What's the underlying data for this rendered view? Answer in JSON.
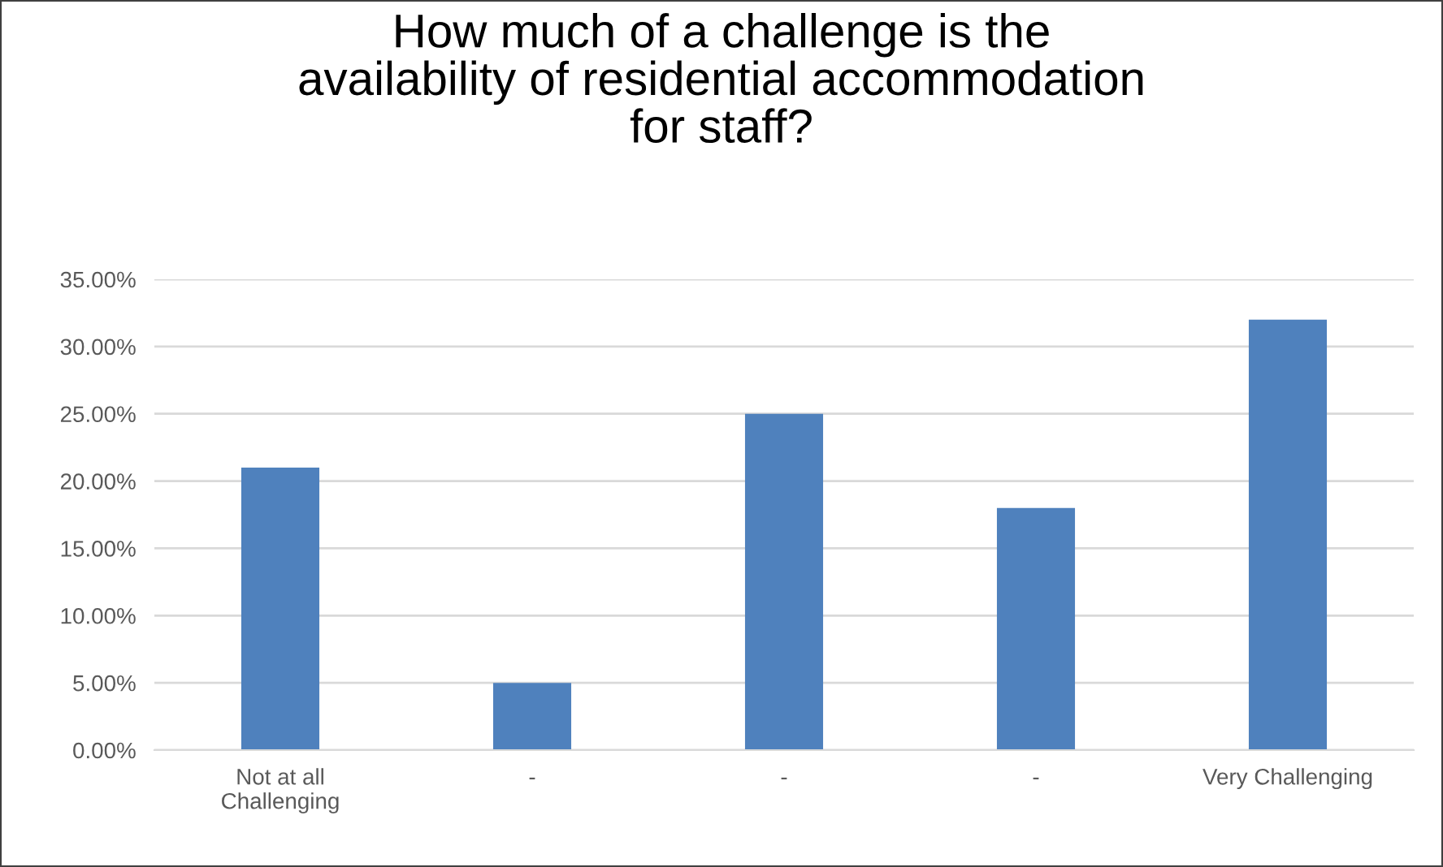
{
  "chart_data": {
    "type": "bar",
    "title": "How much of a challenge is the\navailability of residential accommodation\nfor staff?",
    "categories": [
      "Not at all\nChallenging",
      "-",
      "-",
      "-",
      "Very Challenging"
    ],
    "values": [
      21,
      5,
      25,
      18,
      32
    ],
    "color": "#4f81bd",
    "ylim": [
      0,
      35
    ],
    "yticks": [
      {
        "value": 0,
        "label": "0.00%"
      },
      {
        "value": 5,
        "label": "5.00%"
      },
      {
        "value": 10,
        "label": "10.00%"
      },
      {
        "value": 15,
        "label": "15.00%"
      },
      {
        "value": 20,
        "label": "20.00%"
      },
      {
        "value": 25,
        "label": "25.00%"
      },
      {
        "value": 30,
        "label": "30.00%"
      },
      {
        "value": 35,
        "label": "35.00%"
      }
    ],
    "grid": "y",
    "legend": false
  }
}
